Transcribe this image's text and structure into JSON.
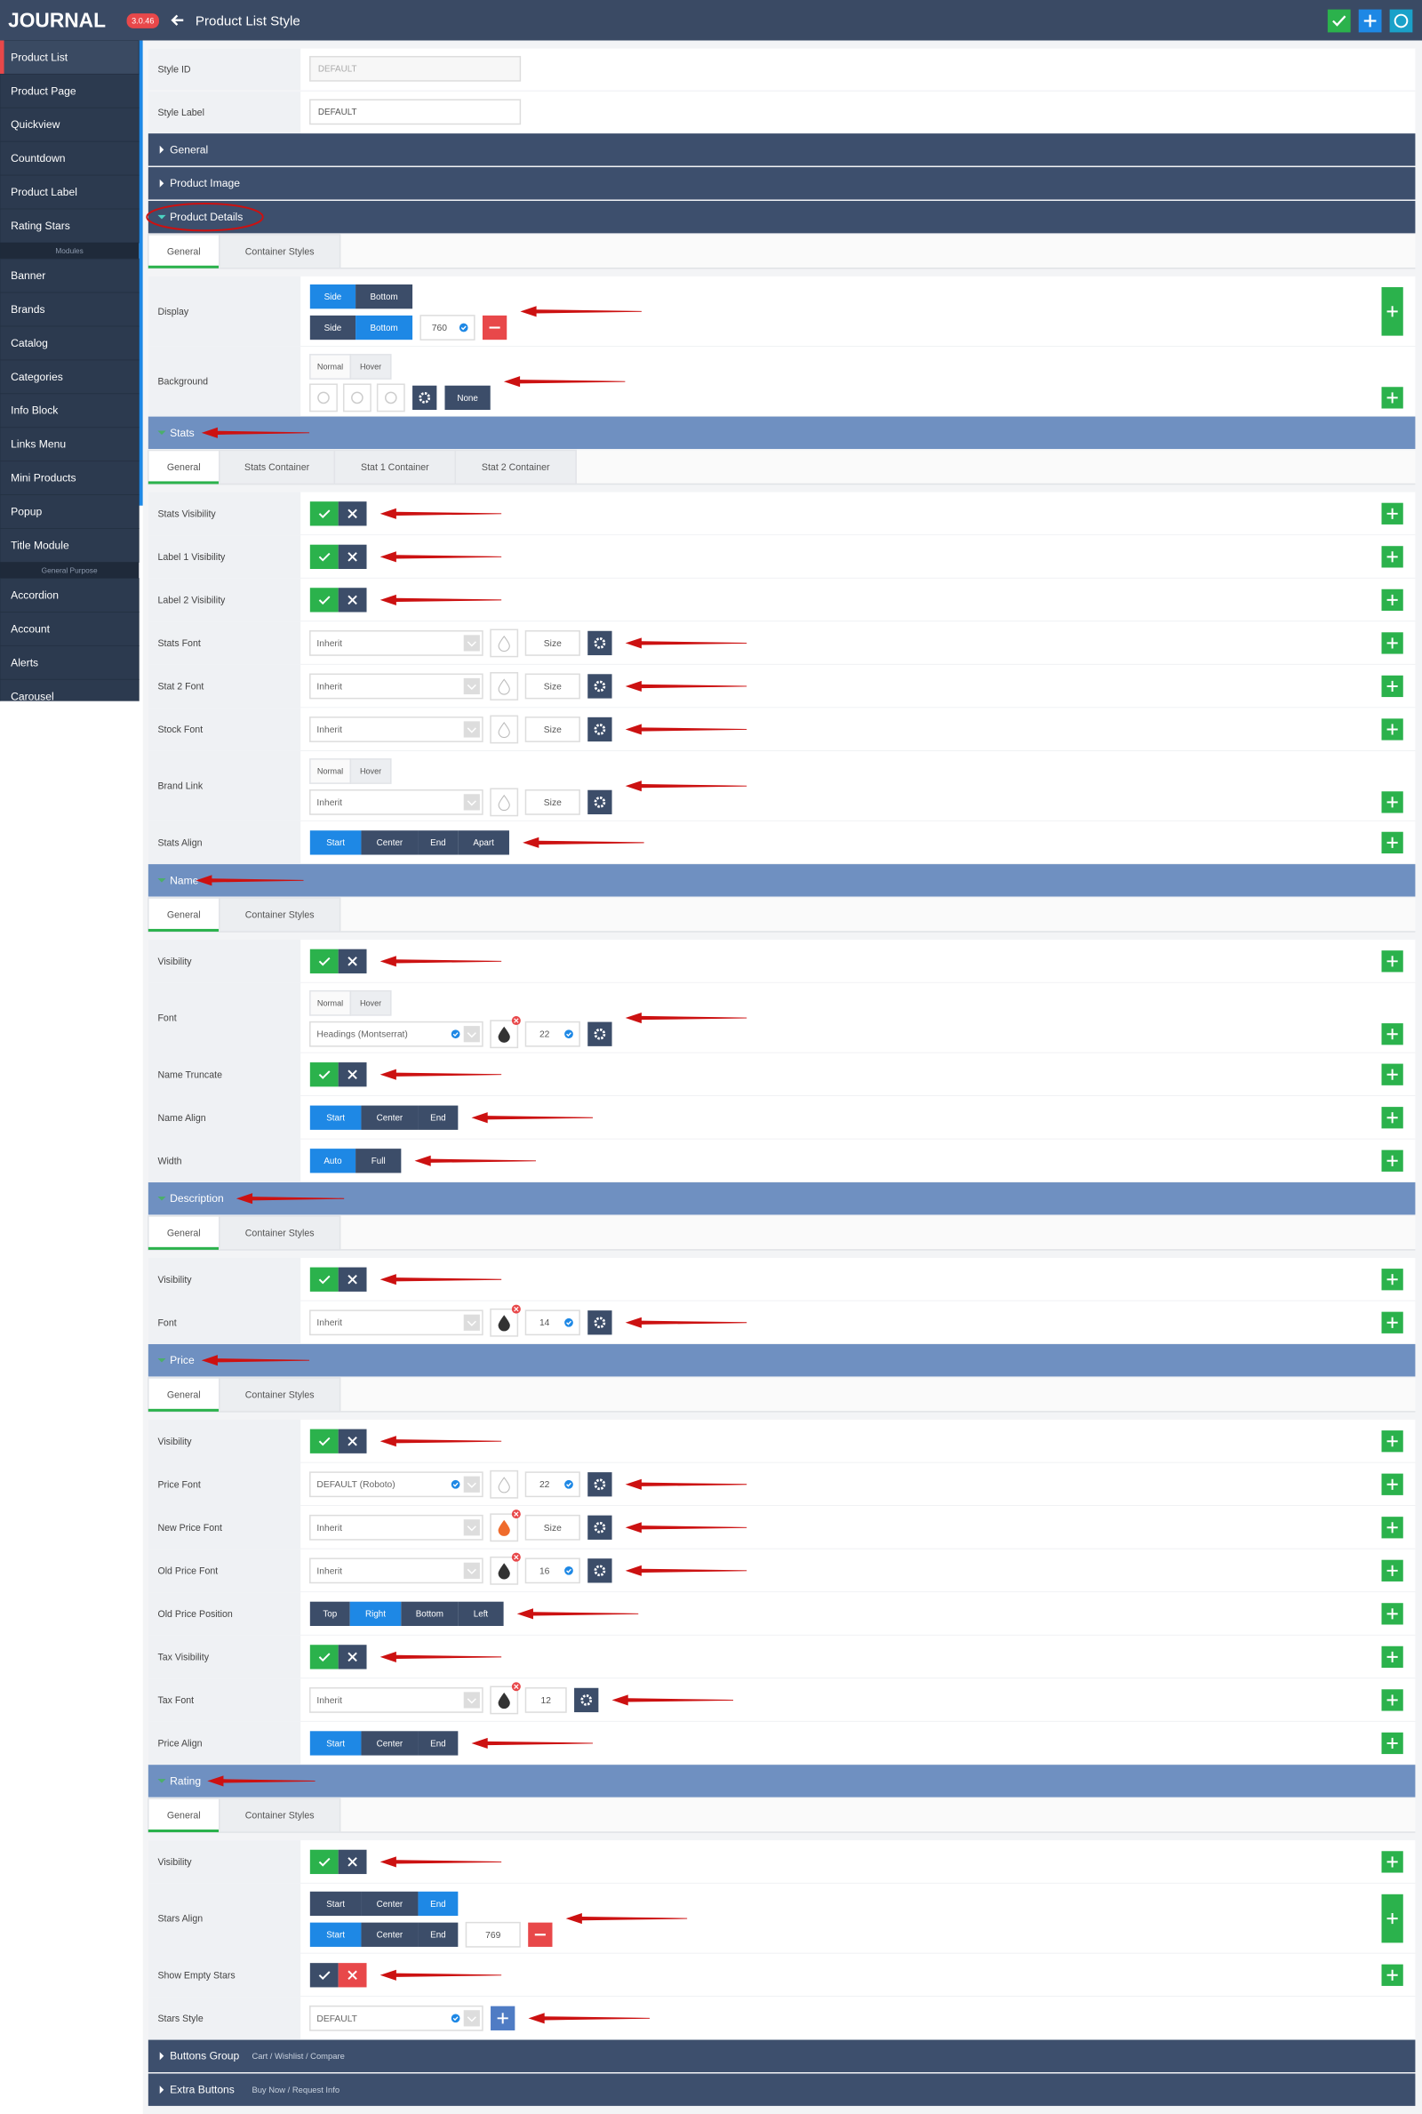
{
  "header": {
    "logo": "JOURNAL",
    "version": "3.0.46",
    "title": "Product List Style"
  },
  "sidebar": {
    "sections": [
      {
        "items": [
          "Product List",
          "Product Page",
          "Quickview",
          "Countdown",
          "Product Label",
          "Rating Stars"
        ]
      },
      {
        "heading": "Modules",
        "items": [
          "Banner",
          "Brands",
          "Catalog",
          "Categories",
          "Info Block",
          "Links Menu",
          "Mini Products",
          "Popup",
          "Title Module"
        ]
      },
      {
        "heading": "General Purpose",
        "items": [
          "Accordion",
          "Account",
          "Alerts",
          "Carousel"
        ]
      }
    ]
  },
  "form": {
    "fields": [
      {
        "label": "Style ID",
        "value": "DEFAULT"
      },
      {
        "label": "Style Label",
        "value": "DEFAULT"
      }
    ],
    "sections": [
      {
        "title": "General"
      },
      {
        "title": "Product Image"
      },
      {
        "title": "Product Details",
        "open": true,
        "tabs": [
          "General",
          "Container Styles"
        ],
        "rows": [
          {
            "label": "Display",
            "lines": [
              [
                {
                  "buttons": [
                    "Side",
                    "Bottom"
                  ],
                  "active": 0
                }
              ],
              [
                {
                  "buttons": [
                    "Side",
                    "Bottom"
                  ],
                  "active": 1
                },
                {
                  "input": "760",
                  "badge": true
                },
                {
                  "remove": true
                }
              ]
            ]
          },
          {
            "label": "Background",
            "lines": [
              [
                {
                  "tabs": [
                    "Normal",
                    "Hover"
                  ]
                }
              ],
              [
                {
                  "icons": 3
                },
                {
                  "gear": true
                },
                {
                  "buttons": [
                    "None"
                  ]
                }
              ]
            ]
          }
        ]
      },
      {
        "title": "Stats",
        "open": true,
        "level": 2,
        "tabs": [
          "General",
          "Stats Container",
          "Stat 1 Container",
          "Stat 2 Container"
        ],
        "rows": [
          {
            "label": "Stats Visibility",
            "lines": [
              [
                {
                  "toggle": "on"
                }
              ]
            ]
          },
          {
            "label": "Label 1 Visibility",
            "lines": [
              [
                {
                  "toggle": "on"
                }
              ]
            ]
          },
          {
            "label": "Label 2 Visibility",
            "lines": [
              [
                {
                  "toggle": "on"
                }
              ]
            ]
          },
          {
            "label": "Stats Font",
            "lines": [
              [
                {
                  "select": "Inherit"
                },
                {
                  "color": "none"
                },
                {
                  "input": "Size"
                },
                {
                  "gear": true
                }
              ]
            ]
          },
          {
            "label": "Stat 2 Font",
            "lines": [
              [
                {
                  "select": "Inherit"
                },
                {
                  "color": "none"
                },
                {
                  "input": "Size"
                },
                {
                  "gear": true
                }
              ]
            ]
          },
          {
            "label": "Stock Font",
            "lines": [
              [
                {
                  "select": "Inherit"
                },
                {
                  "color": "none"
                },
                {
                  "input": "Size"
                },
                {
                  "gear": true
                }
              ]
            ]
          },
          {
            "label": "Brand Link",
            "lines": [
              [
                {
                  "tabs": [
                    "Normal",
                    "Hover"
                  ]
                }
              ],
              [
                {
                  "select": "Inherit"
                },
                {
                  "color": "none"
                },
                {
                  "input": "Size"
                },
                {
                  "gear": true
                }
              ]
            ]
          },
          {
            "label": "Stats Align",
            "lines": [
              [
                {
                  "buttons": [
                    "Start",
                    "Center",
                    "End",
                    "Apart"
                  ],
                  "active": 0
                }
              ]
            ]
          }
        ]
      },
      {
        "title": "Name",
        "open": true,
        "level": 2,
        "tabs": [
          "General",
          "Container Styles"
        ],
        "rows": [
          {
            "label": "Visibility",
            "lines": [
              [
                {
                  "toggle": "on"
                }
              ]
            ]
          },
          {
            "label": "Font",
            "lines": [
              [
                {
                  "tabs": [
                    "Normal",
                    "Hover"
                  ]
                }
              ],
              [
                {
                  "select": "Headings (Montserrat)",
                  "badge": true
                },
                {
                  "color": "dark",
                  "clear": true
                },
                {
                  "input": "22",
                  "badge": true
                },
                {
                  "gear": true
                }
              ]
            ]
          },
          {
            "label": "Name Truncate",
            "lines": [
              [
                {
                  "toggle": "on"
                }
              ]
            ]
          },
          {
            "label": "Name Align",
            "lines": [
              [
                {
                  "buttons": [
                    "Start",
                    "Center",
                    "End"
                  ],
                  "active": 0
                }
              ]
            ]
          },
          {
            "label": "Width",
            "lines": [
              [
                {
                  "buttons": [
                    "Auto",
                    "Full"
                  ],
                  "active": 0
                }
              ]
            ]
          }
        ]
      },
      {
        "title": "Description",
        "open": true,
        "level": 2,
        "tabs": [
          "General",
          "Container Styles"
        ],
        "rows": [
          {
            "label": "Visibility",
            "lines": [
              [
                {
                  "toggle": "on"
                }
              ]
            ]
          },
          {
            "label": "Font",
            "lines": [
              [
                {
                  "select": "Inherit"
                },
                {
                  "color": "dark",
                  "clear": true
                },
                {
                  "input": "14",
                  "badge": true
                },
                {
                  "gear": true
                }
              ]
            ]
          }
        ]
      },
      {
        "title": "Price",
        "open": true,
        "level": 2,
        "tabs": [
          "General",
          "Container Styles"
        ],
        "rows": [
          {
            "label": "Visibility",
            "lines": [
              [
                {
                  "toggle": "on"
                }
              ]
            ]
          },
          {
            "label": "Price Font",
            "lines": [
              [
                {
                  "select": "DEFAULT (Roboto)",
                  "badge": true
                },
                {
                  "color": "none"
                },
                {
                  "input": "22",
                  "badge": true
                },
                {
                  "gear": true
                }
              ]
            ]
          },
          {
            "label": "New Price Font",
            "lines": [
              [
                {
                  "select": "Inherit"
                },
                {
                  "color": "orange",
                  "clear": true
                },
                {
                  "input": "Size"
                },
                {
                  "gear": true
                }
              ]
            ]
          },
          {
            "label": "Old Price Font",
            "lines": [
              [
                {
                  "select": "Inherit"
                },
                {
                  "color": "dark",
                  "clear": true
                },
                {
                  "input": "16",
                  "badge": true
                },
                {
                  "gear": true
                }
              ]
            ]
          },
          {
            "label": "Old Price Position",
            "lines": [
              [
                {
                  "buttons": [
                    "Top",
                    "Right",
                    "Bottom",
                    "Left"
                  ],
                  "active": 1
                }
              ]
            ]
          },
          {
            "label": "Tax Visibility",
            "lines": [
              [
                {
                  "toggle": "on"
                }
              ]
            ]
          },
          {
            "label": "Tax Font",
            "lines": [
              [
                {
                  "select": "Inherit"
                },
                {
                  "color": "dark",
                  "clear": true
                },
                {
                  "input": "12"
                },
                {
                  "gear": true
                }
              ]
            ]
          },
          {
            "label": "Price Align",
            "lines": [
              [
                {
                  "buttons": [
                    "Start",
                    "Center",
                    "End"
                  ],
                  "active": 0
                }
              ]
            ]
          }
        ]
      },
      {
        "title": "Rating",
        "open": true,
        "level": 2,
        "tabs": [
          "General",
          "Container Styles"
        ],
        "rows": [
          {
            "label": "Visibility",
            "lines": [
              [
                {
                  "toggle": "on"
                }
              ]
            ]
          },
          {
            "label": "Stars Align",
            "lines": [
              [
                {
                  "buttons": [
                    "Start",
                    "Center",
                    "End"
                  ],
                  "active": 2
                }
              ],
              [
                {
                  "buttons": [
                    "Start",
                    "Center",
                    "End"
                  ],
                  "active": 0
                },
                {
                  "input": "769"
                },
                {
                  "remove": true
                }
              ]
            ]
          },
          {
            "label": "Show Empty Stars",
            "lines": [
              [
                {
                  "toggle": "off"
                }
              ]
            ]
          },
          {
            "label": "Stars Style",
            "lines": [
              [
                {
                  "select": "DEFAULT",
                  "badge": true
                },
                {
                  "add": true
                }
              ]
            ]
          }
        ]
      },
      {
        "title": "Buttons Group",
        "note": "Cart / Wishlist / Compare"
      },
      {
        "title": "Extra Buttons",
        "note": "Buy Now / Request Info"
      }
    ]
  }
}
